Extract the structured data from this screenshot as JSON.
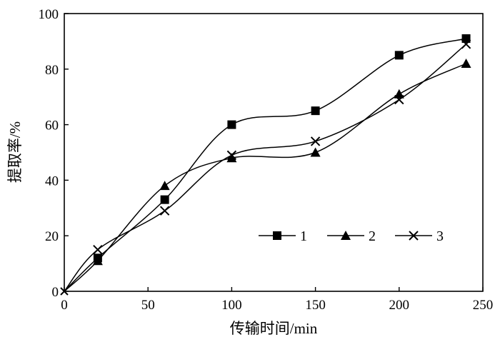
{
  "chart_data": {
    "type": "line",
    "title": "",
    "xlabel": "传输时间/min",
    "ylabel": "提取率/%",
    "xlim": [
      0,
      250
    ],
    "ylim": [
      0,
      100
    ],
    "xticks": [
      0,
      50,
      100,
      150,
      200,
      250
    ],
    "yticks": [
      0,
      20,
      40,
      60,
      80,
      100
    ],
    "grid": false,
    "legend_position": "bottom-right",
    "series": [
      {
        "name": "1",
        "marker": "square",
        "points": [
          [
            0,
            0
          ],
          [
            20,
            12
          ],
          [
            60,
            33
          ],
          [
            100,
            60
          ],
          [
            150,
            65
          ],
          [
            200,
            85
          ],
          [
            240,
            91
          ]
        ]
      },
      {
        "name": "2",
        "marker": "triangle",
        "points": [
          [
            0,
            0
          ],
          [
            20,
            11
          ],
          [
            60,
            38
          ],
          [
            100,
            48
          ],
          [
            150,
            50
          ],
          [
            200,
            71
          ],
          [
            240,
            82
          ]
        ]
      },
      {
        "name": "3",
        "marker": "x",
        "points": [
          [
            0,
            0
          ],
          [
            20,
            15
          ],
          [
            60,
            29
          ],
          [
            100,
            49
          ],
          [
            150,
            54
          ],
          [
            200,
            69
          ],
          [
            240,
            89
          ]
        ]
      }
    ]
  }
}
